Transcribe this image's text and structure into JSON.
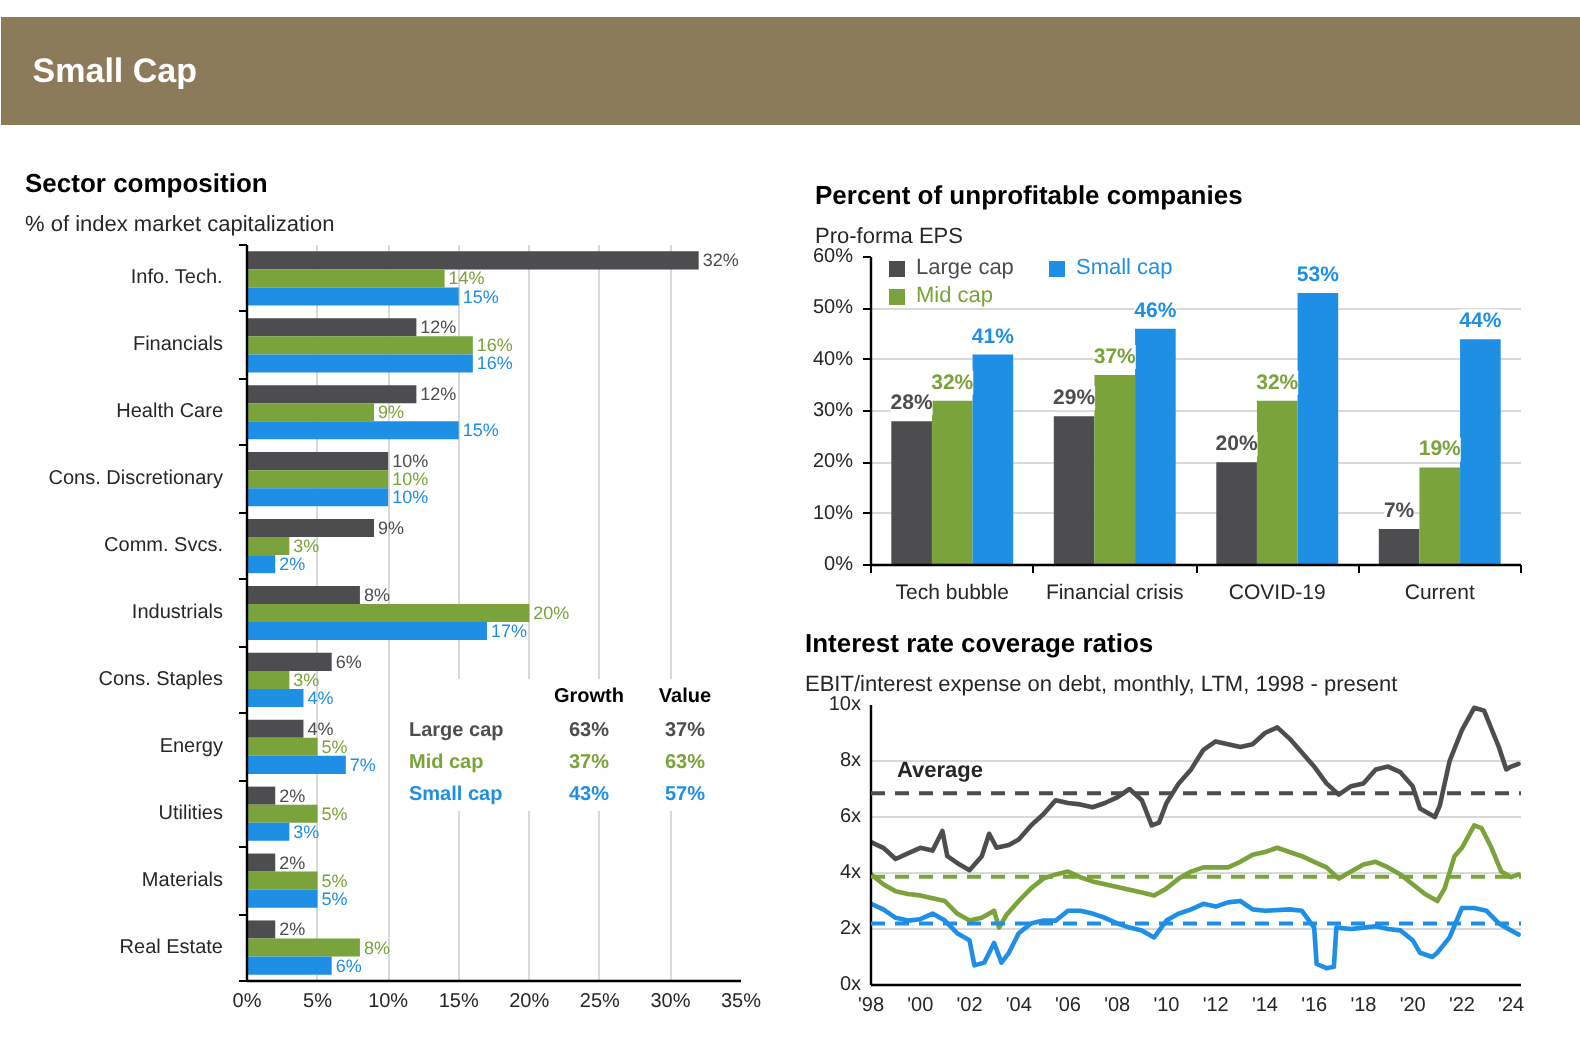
{
  "chart_data": [
    {
      "type": "other",
      "title": "Small Cap"
    },
    {
      "type": "bar",
      "orientation": "horizontal",
      "title": "Sector composition",
      "subtitle": "% of index market capitalization",
      "categories": [
        "Info. Tech.",
        "Financials",
        "Health Care",
        "Cons. Discretionary",
        "Comm. Svcs.",
        "Industrials",
        "Cons. Staples",
        "Energy",
        "Utilities",
        "Materials",
        "Real Estate"
      ],
      "series": [
        {
          "color": "#4d4d4f",
          "values": [
            32,
            12,
            12,
            10,
            9,
            8,
            6,
            4,
            2,
            2,
            2
          ],
          "value_labels": [
            "32%",
            "12%",
            "12%",
            "10%",
            "9%",
            "8%",
            "6%",
            "4%",
            "2%",
            "2%",
            "2%"
          ]
        },
        {
          "color": "#7aa33b",
          "values": [
            14,
            16,
            9,
            10,
            3,
            20,
            3,
            5,
            5,
            5,
            8
          ],
          "value_labels": [
            "14%",
            "16%",
            "9%",
            "10%",
            "3%",
            "20%",
            "3%",
            "5%",
            "5%",
            "5%",
            "8%"
          ]
        },
        {
          "color": "#1f8fe5",
          "values": [
            15,
            16,
            15,
            10,
            2,
            17,
            4,
            7,
            3,
            5,
            6
          ],
          "value_labels": [
            "15%",
            "16%",
            "15%",
            "10%",
            "2%",
            "17%",
            "4%",
            "7%",
            "3%",
            "5%",
            "6%"
          ]
        }
      ],
      "xlim": [
        0,
        35
      ],
      "xticks": [
        {
          "value": 0,
          "label": "0%"
        },
        {
          "value": 5,
          "label": "5%"
        },
        {
          "value": 10,
          "label": "10%"
        },
        {
          "value": 15,
          "label": "15%"
        },
        {
          "value": 20,
          "label": "20%"
        },
        {
          "value": 25,
          "label": "25%"
        },
        {
          "value": 30,
          "label": "30%"
        },
        {
          "value": 35,
          "label": "35%"
        }
      ],
      "grid": "x"
    },
    {
      "type": "other",
      "categories": [
        "Growth",
        "Value"
      ],
      "series": [
        {
          "name": "Large cap",
          "color": "#4d4d4f",
          "values": [
            63,
            37
          ],
          "value_labels": [
            "63%",
            "37%"
          ]
        },
        {
          "name": "Mid cap",
          "color": "#7aa33b",
          "values": [
            37,
            63
          ],
          "value_labels": [
            "37%",
            "63%"
          ]
        },
        {
          "name": "Small cap",
          "color": "#1f8fe5",
          "values": [
            43,
            57
          ],
          "value_labels": [
            "43%",
            "57%"
          ]
        }
      ]
    },
    {
      "type": "bar",
      "title": "Percent of unprofitable companies",
      "subtitle": "Pro-forma EPS",
      "categories": [
        "Tech bubble",
        "Financial crisis",
        "COVID-19",
        "Current"
      ],
      "series": [
        {
          "name": "Large cap",
          "color": "#4d4d4f",
          "values": [
            28,
            29,
            20,
            7
          ],
          "value_labels": [
            "28%",
            "29%",
            "20%",
            "7%"
          ]
        },
        {
          "name": "Mid cap",
          "color": "#7aa33b",
          "values": [
            32,
            37,
            32,
            19
          ],
          "value_labels": [
            "32%",
            "37%",
            "32%",
            "19%"
          ]
        },
        {
          "name": "Small cap",
          "color": "#1f8fe5",
          "values": [
            41,
            46,
            53,
            44
          ],
          "value_labels": [
            "41%",
            "46%",
            "53%",
            "44%"
          ]
        }
      ],
      "ylim": [
        0,
        60
      ],
      "yticks": [
        {
          "value": 0,
          "label": "0%"
        },
        {
          "value": 10,
          "label": "10%"
        },
        {
          "value": 20,
          "label": "20%"
        },
        {
          "value": 30,
          "label": "30%"
        },
        {
          "value": 40,
          "label": "40%"
        },
        {
          "value": 50,
          "label": "50%"
        },
        {
          "value": 60,
          "label": "60%"
        }
      ],
      "grid": "y",
      "legend": "top left"
    },
    {
      "type": "line",
      "title": "Interest rate coverage ratios",
      "subtitle": "EBIT/interest expense on debt, monthly, LTM, 1998 - present",
      "series": [
        {
          "color": "#4d4d4f",
          "x": [
            1998,
            1998.5,
            1999,
            1999.5,
            2000,
            2000.5,
            2000.9,
            2001.1,
            2001.6,
            2002,
            2002.5,
            2002.8,
            2003.1,
            2003.6,
            2004,
            2004.5,
            2005,
            2005.5,
            2006,
            2006.5,
            2007,
            2007.5,
            2008,
            2008.5,
            2009,
            2009.4,
            2009.7,
            2010,
            2010.5,
            2011,
            2011.5,
            2012,
            2012.5,
            2013,
            2013.5,
            2014,
            2014.5,
            2015,
            2015.5,
            2016,
            2016.5,
            2017,
            2017.5,
            2018,
            2018.5,
            2019,
            2019.5,
            2020,
            2020.3,
            2020.9,
            2021.1,
            2021.5,
            2022,
            2022.5,
            2022.9,
            2023.5,
            2023.8,
            2024,
            2024.3
          ],
          "values": [
            5.1,
            4.9,
            4.5,
            4.7,
            4.9,
            4.8,
            5.5,
            4.6,
            4.3,
            4.1,
            4.6,
            5.4,
            4.9,
            5.0,
            5.2,
            5.7,
            6.1,
            6.6,
            6.5,
            6.45,
            6.35,
            6.5,
            6.7,
            7.0,
            6.6,
            5.7,
            5.8,
            6.5,
            7.2,
            7.7,
            8.4,
            8.7,
            8.6,
            8.5,
            8.6,
            9.0,
            9.2,
            8.8,
            8.3,
            7.8,
            7.2,
            6.8,
            7.1,
            7.2,
            7.7,
            7.8,
            7.6,
            7.1,
            6.3,
            6.0,
            6.4,
            8.0,
            9.1,
            9.9,
            9.8,
            8.5,
            7.7,
            7.8,
            7.9
          ]
        },
        {
          "color": "#7aa33b",
          "x": [
            1998,
            1998.5,
            1999,
            1999.5,
            2000,
            2000.5,
            2001,
            2001.5,
            2002,
            2002.5,
            2003,
            2003.2,
            2003.5,
            2004,
            2004.5,
            2005,
            2005.5,
            2006,
            2006.5,
            2007,
            2007.5,
            2008,
            2008.5,
            2009,
            2009.5,
            2010,
            2010.5,
            2011,
            2011.5,
            2012,
            2012.5,
            2013,
            2013.5,
            2014,
            2014.5,
            2015,
            2015.5,
            2016,
            2016.5,
            2017,
            2017.5,
            2018,
            2018.5,
            2019,
            2019.5,
            2020,
            2020.5,
            2021,
            2021.3,
            2021.7,
            2022,
            2022.5,
            2022.8,
            2023.2,
            2023.6,
            2024,
            2024.3
          ],
          "values": [
            3.95,
            3.6,
            3.35,
            3.25,
            3.2,
            3.1,
            3.0,
            2.55,
            2.3,
            2.4,
            2.65,
            2.05,
            2.5,
            3.0,
            3.45,
            3.8,
            3.95,
            4.05,
            3.85,
            3.7,
            3.6,
            3.5,
            3.4,
            3.3,
            3.2,
            3.45,
            3.8,
            4.05,
            4.2,
            4.2,
            4.2,
            4.4,
            4.65,
            4.75,
            4.9,
            4.75,
            4.6,
            4.4,
            4.2,
            3.8,
            4.05,
            4.3,
            4.4,
            4.2,
            3.95,
            3.6,
            3.25,
            3.0,
            3.45,
            4.6,
            4.9,
            5.7,
            5.6,
            4.9,
            4.05,
            3.85,
            3.95
          ]
        },
        {
          "color": "#1f8fe5",
          "x": [
            1998,
            1998.5,
            1999,
            1999.5,
            2000,
            2000.5,
            2001,
            2001.5,
            2002,
            2002.2,
            2002.6,
            2003,
            2003.3,
            2003.6,
            2004,
            2004.5,
            2005,
            2005.5,
            2006,
            2006.5,
            2007,
            2007.5,
            2008,
            2008.5,
            2009,
            2009.5,
            2010,
            2010.5,
            2011,
            2011.5,
            2012,
            2012.5,
            2013,
            2013.5,
            2014,
            2015,
            2015.5,
            2016,
            2016.1,
            2016.5,
            2016.8,
            2016.9,
            2017.5,
            2018,
            2018.5,
            2019,
            2019.5,
            2020,
            2020.3,
            2020.8,
            2021,
            2021.5,
            2022,
            2022.5,
            2023,
            2023.5,
            2024,
            2024.3
          ],
          "values": [
            2.9,
            2.7,
            2.4,
            2.3,
            2.35,
            2.55,
            2.3,
            1.85,
            1.6,
            0.7,
            0.8,
            1.5,
            0.8,
            1.15,
            1.85,
            2.2,
            2.3,
            2.3,
            2.65,
            2.65,
            2.55,
            2.4,
            2.2,
            2.05,
            1.95,
            1.7,
            2.3,
            2.55,
            2.7,
            2.9,
            2.8,
            2.95,
            3.0,
            2.7,
            2.65,
            2.7,
            2.65,
            2.05,
            0.75,
            0.6,
            0.65,
            2.05,
            2.0,
            2.05,
            2.1,
            2.0,
            1.95,
            1.6,
            1.15,
            1.0,
            1.15,
            1.7,
            2.75,
            2.75,
            2.65,
            2.2,
            1.95,
            1.8
          ]
        }
      ],
      "xlim": [
        1998,
        2024.4
      ],
      "xticks": [
        {
          "value": 1998,
          "label": "'98"
        },
        {
          "value": 2000,
          "label": "'00"
        },
        {
          "value": 2002,
          "label": "'02"
        },
        {
          "value": 2004,
          "label": "'04"
        },
        {
          "value": 2006,
          "label": "'06"
        },
        {
          "value": 2008,
          "label": "'08"
        },
        {
          "value": 2010,
          "label": "'10"
        },
        {
          "value": 2012,
          "label": "'12"
        },
        {
          "value": 2014,
          "label": "'14"
        },
        {
          "value": 2016,
          "label": "'16"
        },
        {
          "value": 2018,
          "label": "'18"
        },
        {
          "value": 2020,
          "label": "'20"
        },
        {
          "value": 2022,
          "label": "'22"
        },
        {
          "value": 2024,
          "label": "'24"
        }
      ],
      "ylim": [
        0,
        10
      ],
      "yticks": [
        {
          "value": 0,
          "label": "0x"
        },
        {
          "value": 2,
          "label": "2x"
        },
        {
          "value": 4,
          "label": "4x"
        },
        {
          "value": 6,
          "label": "6x"
        },
        {
          "value": 8,
          "label": "8x"
        },
        {
          "value": 10,
          "label": "10x"
        }
      ],
      "grid": "y",
      "ref_lines": [
        {
          "axis": "y",
          "value": 6.85,
          "label": "Average",
          "color": "#4d4d4f",
          "line_style": "dashed"
        },
        {
          "axis": "y",
          "value": 3.87,
          "color": "#7aa33b",
          "line_style": "dashed"
        },
        {
          "axis": "y",
          "value": 2.2,
          "color": "#1f8fe5",
          "line_style": "dashed"
        }
      ]
    }
  ]
}
